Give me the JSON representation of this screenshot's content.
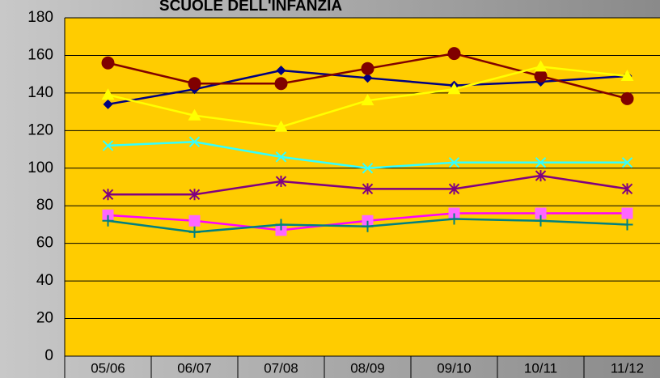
{
  "chart_data": {
    "type": "line",
    "title": "SCUOLE DELL'INFANZIA",
    "categories": [
      "05/06",
      "06/07",
      "07/08",
      "08/09",
      "09/10",
      "10/11",
      "11/12"
    ],
    "ylim": [
      0,
      180
    ],
    "yticks": [
      0,
      20,
      40,
      60,
      80,
      100,
      120,
      140,
      160,
      180
    ],
    "grid": true,
    "series": [
      {
        "color": "#000080",
        "marker": "diamond",
        "values": [
          134,
          142,
          152,
          148,
          144,
          146,
          149
        ]
      },
      {
        "color": "#800000",
        "marker": "circle",
        "values": [
          156,
          145,
          145,
          153,
          161,
          149,
          137
        ]
      },
      {
        "color": "#FFFF00",
        "marker": "triangle",
        "values": [
          139,
          128,
          122,
          136,
          142,
          154,
          149
        ]
      },
      {
        "color": "#33FFFF",
        "marker": "x",
        "values": [
          112,
          114,
          106,
          100,
          103,
          103,
          103
        ]
      },
      {
        "color": "#800080",
        "marker": "asterisk",
        "values": [
          86,
          86,
          93,
          89,
          89,
          96,
          89
        ]
      },
      {
        "color": "#FF00FF",
        "marker": "square",
        "values": [
          75,
          72,
          67,
          72,
          76,
          76,
          76
        ]
      },
      {
        "color": "#008080",
        "marker": "plus",
        "values": [
          72,
          66,
          70,
          69,
          73,
          72,
          70
        ]
      }
    ]
  }
}
